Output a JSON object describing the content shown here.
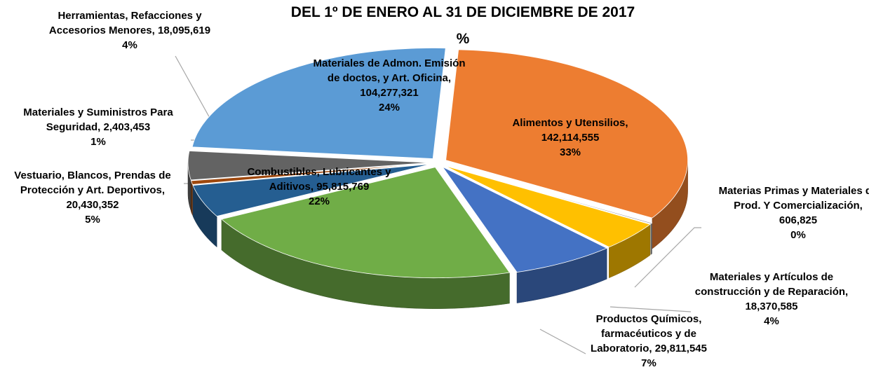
{
  "chart_data": {
    "type": "pie",
    "title": "DEL 1º DE ENERO AL 31 DE DICIEMBRE DE 2017",
    "subtitle": "%",
    "categories": [
      "Alimentos y Utensilios",
      "Materias Primas y Materiales de Prod. Y Comercialización",
      "Materiales y Artículos de construcción y de Reparación",
      "Productos Químicos, farmacéuticos y de Laboratorio",
      "Combustibles, Lubricantes y Aditivos",
      "Vestuario, Blancos, Prendas de Protección y Art. Deportivos",
      "Materiales y Suministros Para Seguridad",
      "Herramientas, Refacciones y Accesorios Menores",
      "Materiales de Admon. Emisión de doctos, y Art. Oficina"
    ],
    "values": [
      142114555,
      606825,
      18370585,
      29811545,
      95815769,
      20430352,
      2403453,
      18095619,
      104277321
    ],
    "value_labels": [
      "142,114,555",
      "606,825",
      "18,370,585",
      "29,811,545",
      "95,815,769",
      "20,430,352",
      "2,403,453",
      "18,095,619",
      "104,277,321"
    ],
    "percents": [
      33,
      0,
      4,
      7,
      22,
      5,
      1,
      4,
      24
    ],
    "percent_labels": [
      "33%",
      "0%",
      "4%",
      "7%",
      "22%",
      "5%",
      "1%",
      "4%",
      "24%"
    ],
    "colors": [
      "#ed7d31",
      "#a5a5a5",
      "#ffc000",
      "#4472c4",
      "#70ad47",
      "#255e91",
      "#9e480e",
      "#636363",
      "#5b9bd5"
    ]
  }
}
